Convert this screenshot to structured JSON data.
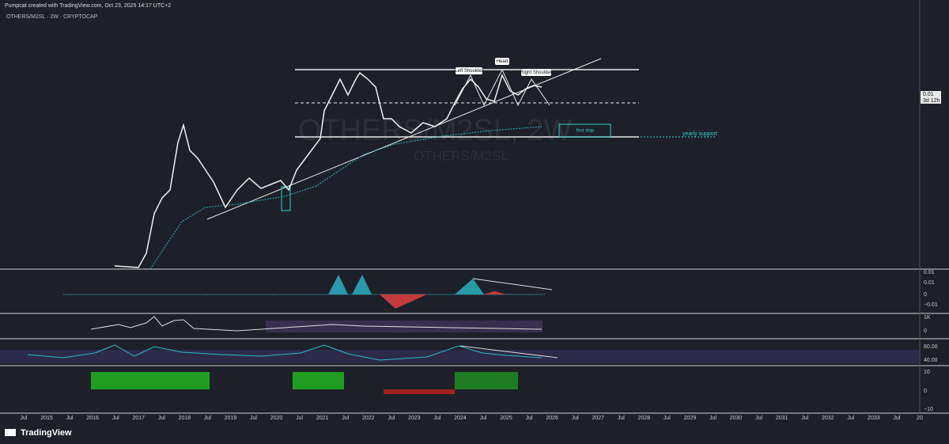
{
  "header": {
    "credit": "Pumpcat created with TradingView.com, Oct 23, 2025 14:17 UTC+2",
    "symbol": "OTHERS/M2SL · 2W · CRYPTOCAP"
  },
  "watermark": {
    "main": "OTHERS/M2SL, 2W",
    "sub": "OTHERS/M2SL"
  },
  "annotations": {
    "left_shoulder": "Left Shoulder",
    "head": "Head",
    "right_shoulder": "Right Shoulder",
    "first_stop": "first stop",
    "yearly_support": "yearly support"
  },
  "price_label": {
    "price": "0.01",
    "countdown": "3d 12h"
  },
  "panes": [
    {
      "scale": [
        "0.01",
        "0.01",
        "0",
        "−0.01"
      ]
    },
    {
      "scale": [
        "1K",
        "0"
      ]
    },
    {
      "scale": [
        "80.00",
        "40.00"
      ]
    },
    {
      "scale": [
        "10",
        "0",
        "−10"
      ]
    }
  ],
  "time_axis": [
    "Jul",
    "2015",
    "Jul",
    "2016",
    "Jul",
    "2017",
    "Jul",
    "2018",
    "Jul",
    "2019",
    "Jul",
    "2020",
    "Jul",
    "2021",
    "Jul",
    "2022",
    "Jul",
    "2023",
    "Jul",
    "2024",
    "Jul",
    "2025",
    "Jul",
    "2026",
    "Jul",
    "2027",
    "Jul",
    "2028",
    "Jul",
    "2029",
    "Jul",
    "2030",
    "Jul",
    "2031",
    "Jul",
    "2032",
    "Jul",
    "2033",
    "Jul",
    "20"
  ],
  "brand": "TradingView"
}
